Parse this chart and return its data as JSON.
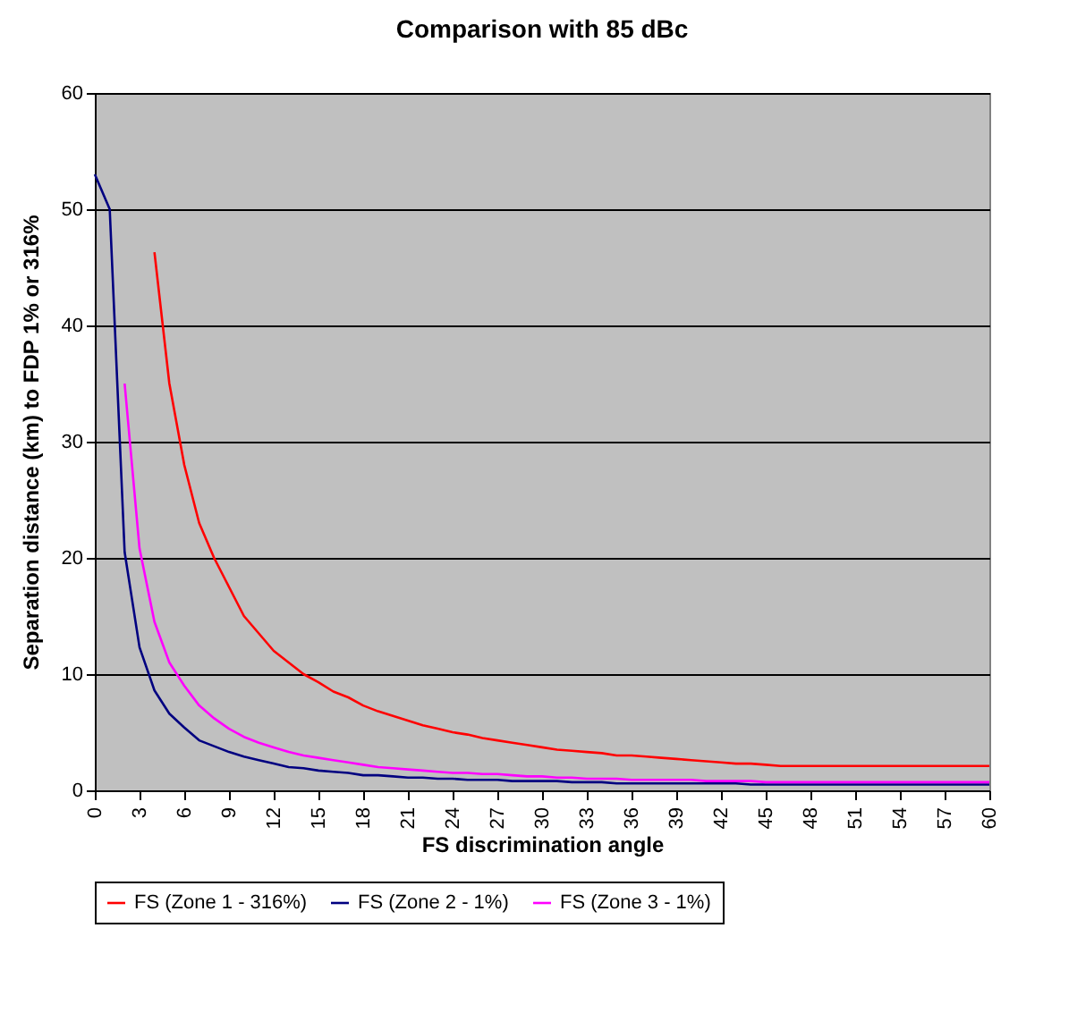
{
  "chart_data": {
    "type": "line",
    "title": "Comparison with 85 dBc",
    "xlabel": "FS discrimination angle",
    "ylabel": "Separation distance (km) to FDP 1% or 316%",
    "x": [
      0,
      1,
      2,
      3,
      4,
      5,
      6,
      7,
      8,
      9,
      10,
      11,
      12,
      13,
      14,
      15,
      16,
      17,
      18,
      19,
      20,
      21,
      22,
      23,
      24,
      25,
      26,
      27,
      28,
      29,
      30,
      31,
      32,
      33,
      34,
      35,
      36,
      37,
      38,
      39,
      40,
      41,
      42,
      43,
      44,
      45,
      46,
      47,
      48,
      49,
      50,
      51,
      52,
      53,
      54,
      55,
      56,
      57,
      58,
      59,
      60
    ],
    "series": [
      {
        "name": "FS (Zone 1 - 316%)",
        "color": "#ff0000",
        "values": [
          null,
          null,
          null,
          null,
          46.3,
          35,
          28,
          23,
          20,
          17.5,
          15,
          13.5,
          12,
          11,
          10,
          9.3,
          8.5,
          8,
          7.3,
          6.8,
          6.4,
          6,
          5.6,
          5.3,
          5,
          4.8,
          4.5,
          4.3,
          4.1,
          3.9,
          3.7,
          3.5,
          3.4,
          3.3,
          3.2,
          3,
          3,
          2.9,
          2.8,
          2.7,
          2.6,
          2.5,
          2.4,
          2.3,
          2.3,
          2.2,
          2.1,
          2.1,
          2.1,
          2.1,
          2.1,
          2.1,
          2.1,
          2.1,
          2.1,
          2.1,
          2.1,
          2.1,
          2.1,
          2.1,
          2.1
        ]
      },
      {
        "name": "FS (Zone 2 - 1%)",
        "color": "#000080",
        "values": [
          53,
          50,
          20.5,
          12.3,
          8.6,
          6.6,
          5.4,
          4.3,
          3.8,
          3.3,
          2.9,
          2.6,
          2.3,
          2,
          1.9,
          1.7,
          1.6,
          1.5,
          1.3,
          1.3,
          1.2,
          1.1,
          1.1,
          1,
          1,
          0.9,
          0.9,
          0.9,
          0.8,
          0.8,
          0.8,
          0.8,
          0.7,
          0.7,
          0.7,
          0.6,
          0.6,
          0.6,
          0.6,
          0.6,
          0.6,
          0.6,
          0.6,
          0.6,
          0.5,
          0.5,
          0.5,
          0.5,
          0.5,
          0.5,
          0.5,
          0.5,
          0.5,
          0.5,
          0.5,
          0.5,
          0.5,
          0.5,
          0.5,
          0.5,
          0.5
        ]
      },
      {
        "name": "FS (Zone 3 - 1%)",
        "color": "#ff00ff",
        "values": [
          null,
          null,
          35,
          20.8,
          14.5,
          11,
          9,
          7.3,
          6.2,
          5.3,
          4.6,
          4.1,
          3.7,
          3.3,
          3,
          2.8,
          2.6,
          2.4,
          2.2,
          2,
          1.9,
          1.8,
          1.7,
          1.6,
          1.5,
          1.5,
          1.4,
          1.4,
          1.3,
          1.2,
          1.2,
          1.1,
          1.1,
          1,
          1,
          1,
          0.9,
          0.9,
          0.9,
          0.9,
          0.9,
          0.8,
          0.8,
          0.8,
          0.8,
          0.7,
          0.7,
          0.7,
          0.7,
          0.7,
          0.7,
          0.7,
          0.7,
          0.7,
          0.7,
          0.7,
          0.7,
          0.7,
          0.7,
          0.7,
          0.7
        ]
      }
    ],
    "xlim": [
      0,
      60
    ],
    "xticks": [
      0,
      3,
      6,
      9,
      12,
      15,
      18,
      21,
      24,
      27,
      30,
      33,
      36,
      39,
      42,
      45,
      48,
      51,
      54,
      57,
      60
    ],
    "ylim": [
      0,
      60
    ],
    "yticks": [
      0,
      10,
      20,
      30,
      40,
      50,
      60
    ],
    "grid": "y",
    "legend": "bottom",
    "marker": "none",
    "line_style": "solid"
  }
}
